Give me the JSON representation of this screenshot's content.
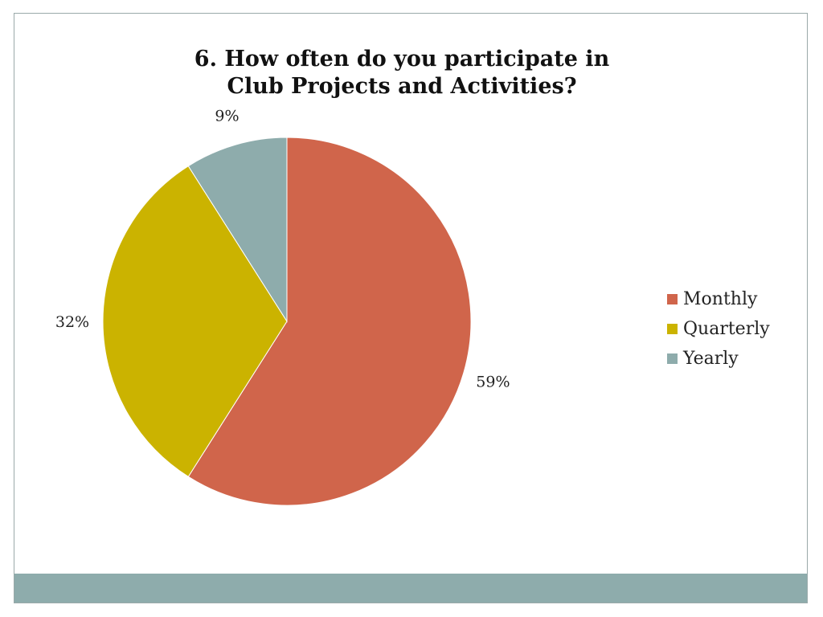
{
  "title_lines": [
    "6. How often do you participate in",
    "Club Projects and Activities?"
  ],
  "chart_data": {
    "type": "pie",
    "title": "6. How often do you participate in Club Projects and Activities?",
    "categories": [
      "Monthly",
      "Quarterly",
      "Yearly"
    ],
    "values": [
      59,
      32,
      9
    ],
    "value_labels": [
      "59%",
      "32%",
      "9%"
    ],
    "colors": [
      "#d0654b",
      "#cbb300",
      "#8eacac"
    ],
    "legend_position": "right",
    "start": "top",
    "direction": "clockwise"
  },
  "theme": {
    "footer_color": "#8eacac"
  }
}
